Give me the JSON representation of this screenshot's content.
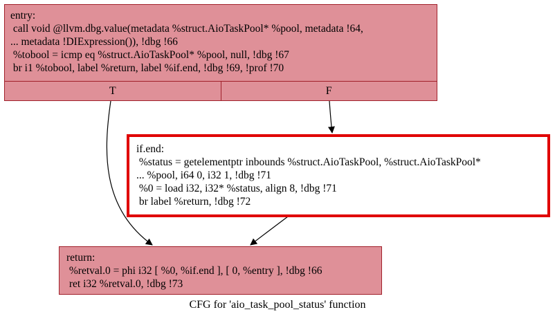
{
  "nodes": {
    "entry": {
      "lines": [
        "entry:",
        " call void @llvm.dbg.value(metadata %struct.AioTaskPool* %pool, metadata !64,",
        "... metadata !DIExpression()), !dbg !66",
        " %tobool = icmp eq %struct.AioTaskPool* %pool, null, !dbg !67",
        " br i1 %tobool, label %return, label %if.end, !dbg !69, !prof !70"
      ],
      "port_true": "T",
      "port_false": "F"
    },
    "ifend": {
      "lines": [
        "if.end:",
        " %status = getelementptr inbounds %struct.AioTaskPool, %struct.AioTaskPool*",
        "... %pool, i64 0, i32 1, !dbg !71",
        " %0 = load i32, i32* %status, align 8, !dbg !71",
        " br label %return, !dbg !72"
      ]
    },
    "return": {
      "lines": [
        "return:",
        " %retval.0 = phi i32 [ %0, %if.end ], [ 0, %entry ], !dbg !66",
        " ret i32 %retval.0, !dbg !73"
      ]
    }
  },
  "caption": "CFG for 'aio_task_pool_status' function",
  "colors": {
    "node_fill": "#df9098",
    "node_border": "#a0202a",
    "highlight_border": "#e00000"
  }
}
